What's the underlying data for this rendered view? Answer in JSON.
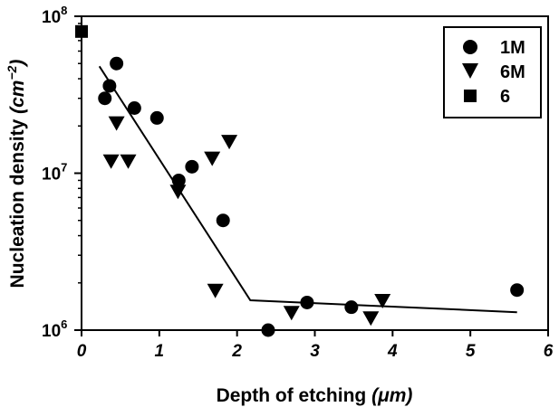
{
  "chart_data": {
    "type": "scatter",
    "xlabel": {
      "text": "Depth of etching ",
      "unit": "(μm)"
    },
    "ylabel": {
      "text": "Nucleation density ",
      "unit_open": "(cm",
      "unit_sup": "−2",
      "unit_close": ")"
    },
    "xlim": [
      0,
      6
    ],
    "ylim": [
      1000000,
      100000000
    ],
    "y_scale": "log",
    "x_ticks": [
      {
        "value": 0,
        "label": "0"
      },
      {
        "value": 1,
        "label": "1"
      },
      {
        "value": 2,
        "label": "2"
      },
      {
        "value": 3,
        "label": "3"
      },
      {
        "value": 4,
        "label": "4"
      },
      {
        "value": 5,
        "label": "5"
      },
      {
        "value": 6,
        "label": "6"
      }
    ],
    "y_ticks": [
      {
        "value": 1000000,
        "base": "10",
        "exp": "6"
      },
      {
        "value": 10000000,
        "base": "10",
        "exp": "7"
      },
      {
        "value": 100000000,
        "base": "10",
        "exp": "8"
      }
    ],
    "grid": false,
    "legend_position": "top-right",
    "series": [
      {
        "name": "1M",
        "marker": "circle",
        "color": "#000000",
        "points": [
          {
            "x": 0.3,
            "y": 30000000
          },
          {
            "x": 0.36,
            "y": 36000000
          },
          {
            "x": 0.45,
            "y": 50000000
          },
          {
            "x": 0.68,
            "y": 26000000
          },
          {
            "x": 0.97,
            "y": 22500000
          },
          {
            "x": 1.25,
            "y": 9000000
          },
          {
            "x": 1.42,
            "y": 11000000
          },
          {
            "x": 1.82,
            "y": 5000000
          },
          {
            "x": 2.4,
            "y": 1000000
          },
          {
            "x": 2.9,
            "y": 1500000
          },
          {
            "x": 3.47,
            "y": 1400000
          },
          {
            "x": 5.6,
            "y": 1800000
          }
        ]
      },
      {
        "name": "6M",
        "marker": "triangle-down",
        "color": "#000000",
        "points": [
          {
            "x": 0.38,
            "y": 12000000
          },
          {
            "x": 0.45,
            "y": 21000000
          },
          {
            "x": 0.6,
            "y": 12000000
          },
          {
            "x": 1.24,
            "y": 7700000
          },
          {
            "x": 1.68,
            "y": 12500000
          },
          {
            "x": 1.72,
            "y": 1800000
          },
          {
            "x": 1.9,
            "y": 16000000
          },
          {
            "x": 2.7,
            "y": 1300000
          },
          {
            "x": 3.72,
            "y": 1200000
          },
          {
            "x": 3.87,
            "y": 1550000
          }
        ]
      },
      {
        "name": "6",
        "marker": "square",
        "color": "#000000",
        "points": [
          {
            "x": 0.0,
            "y": 80000000
          }
        ]
      }
    ],
    "fit_line": [
      {
        "x": 0.23,
        "y": 48000000
      },
      {
        "x": 2.17,
        "y": 1550000
      },
      {
        "x": 5.6,
        "y": 1300000
      }
    ]
  }
}
